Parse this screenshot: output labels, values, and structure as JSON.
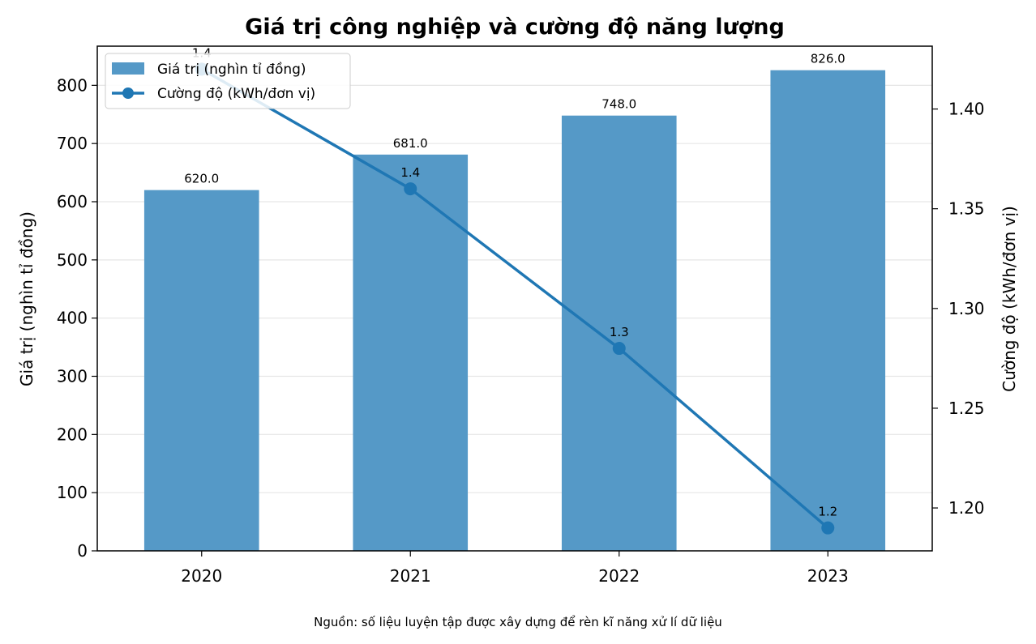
{
  "chart_data": {
    "type": "bar",
    "title": "Giá trị công nghiệp và cường độ năng lượng",
    "caption": "Nguồn: số liệu luyện tập được xây dựng để rèn kĩ năng xử lí dữ liệu",
    "categories": [
      "2020",
      "2021",
      "2022",
      "2023"
    ],
    "series": [
      {
        "name": "Giá trị (nghìn tỉ đồng)",
        "type": "bar",
        "axis": "left",
        "values": [
          620.0,
          681.0,
          748.0,
          826.0
        ],
        "labels": [
          "620.0",
          "681.0",
          "748.0",
          "826.0"
        ],
        "color": "#5599c7"
      },
      {
        "name": "Cường độ (kWh/đơn vị)",
        "type": "line",
        "axis": "right",
        "values": [
          1.42,
          1.36,
          1.28,
          1.19
        ],
        "labels": [
          "1.4",
          "1.4",
          "1.3",
          "1.2"
        ],
        "color": "#1f77b4"
      }
    ],
    "ylabel": "Giá trị (nghìn tỉ đồng)",
    "y2label": "Cường độ (kWh/đơn vị)",
    "ylim": [
      0,
      867.3
    ],
    "y2lim": [
      1.1785,
      1.4315
    ],
    "yticks": [
      "0",
      "100",
      "200",
      "300",
      "400",
      "500",
      "600",
      "700",
      "800"
    ],
    "y2ticks": [
      "1.20",
      "1.25",
      "1.30",
      "1.35",
      "1.40"
    ],
    "grid": "horizontal",
    "legend": "top-left"
  }
}
